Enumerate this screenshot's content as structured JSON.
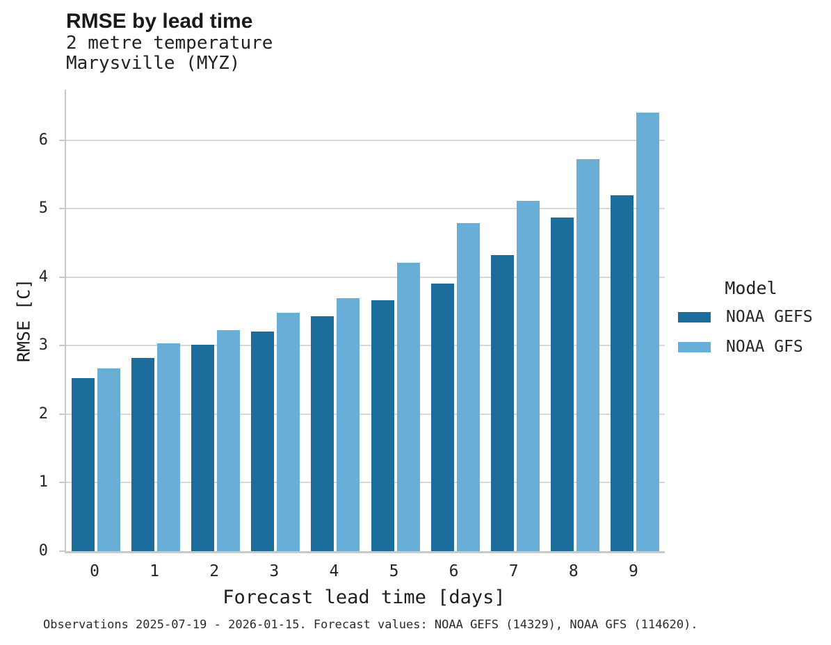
{
  "chart_data": {
    "type": "bar",
    "title": "RMSE by lead time",
    "subtitle": [
      "2 metre temperature",
      "Marysville (MYZ)"
    ],
    "xlabel": "Forecast lead time [days]",
    "ylabel": "RMSE [C]",
    "categories": [
      "0",
      "1",
      "2",
      "3",
      "4",
      "5",
      "6",
      "7",
      "8",
      "9"
    ],
    "series": [
      {
        "name": "NOAA GEFS",
        "color": "#1c6d9c",
        "values": [
          2.53,
          2.82,
          3.01,
          3.21,
          3.43,
          3.66,
          3.91,
          4.32,
          4.87,
          5.2
        ]
      },
      {
        "name": "NOAA GFS",
        "color": "#69aed6",
        "values": [
          2.67,
          3.03,
          3.23,
          3.48,
          3.69,
          4.21,
          4.79,
          5.11,
          5.72,
          6.4
        ]
      }
    ],
    "ylim": [
      0,
      6.74
    ],
    "yticks": [
      0,
      1,
      2,
      3,
      4,
      5,
      6
    ],
    "grid": true,
    "legend_title": "Model",
    "legend_position": "right",
    "caption": "Observations 2025-07-19 - 2026-01-15. Forecast values: NOAA GEFS (14329), NOAA GFS (114620)."
  }
}
